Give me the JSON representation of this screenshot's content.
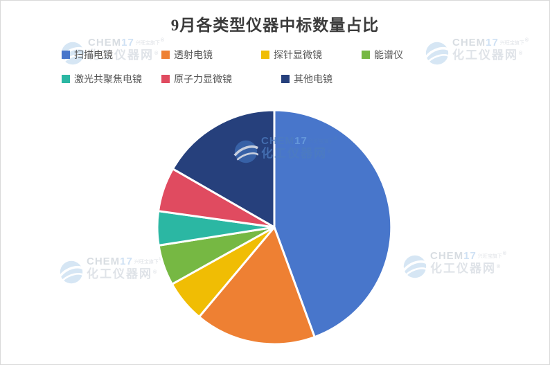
{
  "page": {
    "background": "#ffffff",
    "border_color": "#d9d9d9"
  },
  "chart_data": {
    "type": "pie",
    "title": "9月各类型仪器中标数量占比",
    "legend_position": "top",
    "direction": "clockwise",
    "start_angle_deg": 0,
    "data_labels": false,
    "total_pct": 100,
    "series": [
      {
        "name": "扫描电镜",
        "value_pct": 44.4,
        "color": "#4876CB"
      },
      {
        "name": "透射电镜",
        "value_pct": 16.7,
        "color": "#EE8033"
      },
      {
        "name": "探针显微镜",
        "value_pct": 5.8,
        "color": "#F0BD04"
      },
      {
        "name": "能谱仪",
        "value_pct": 5.6,
        "color": "#76B843"
      },
      {
        "name": "激光共聚焦电镜",
        "value_pct": 4.7,
        "color": "#2BB7A3"
      },
      {
        "name": "原子力显微镜",
        "value_pct": 6.1,
        "color": "#E04B60"
      },
      {
        "name": "其他电镜",
        "value_pct": 16.7,
        "color": "#26407C"
      }
    ]
  },
  "watermark": {
    "brand_chem": "CHEM",
    "brand_17": "17",
    "tagline": "兴旺宝旗下",
    "site": "化工仪器网",
    "registered_mark": "®"
  }
}
